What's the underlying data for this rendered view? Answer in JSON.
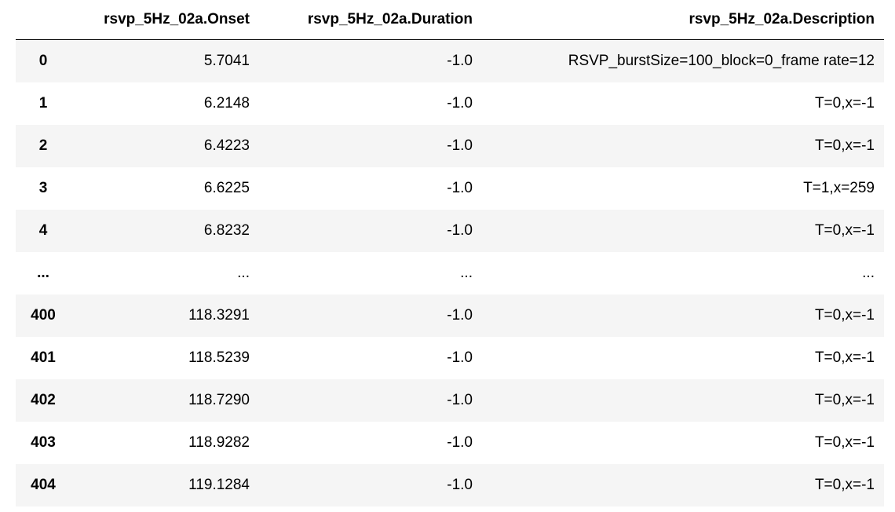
{
  "table": {
    "columns": [
      "rsvp_5Hz_02a.Onset",
      "rsvp_5Hz_02a.Duration",
      "rsvp_5Hz_02a.Description"
    ],
    "rows": [
      {
        "index": "0",
        "cells": [
          "5.7041",
          "-1.0",
          "RSVP_burstSize=100_block=0_frame rate=12"
        ]
      },
      {
        "index": "1",
        "cells": [
          "6.2148",
          "-1.0",
          "T=0,x=-1"
        ]
      },
      {
        "index": "2",
        "cells": [
          "6.4223",
          "-1.0",
          "T=0,x=-1"
        ]
      },
      {
        "index": "3",
        "cells": [
          "6.6225",
          "-1.0",
          "T=1,x=259"
        ]
      },
      {
        "index": "4",
        "cells": [
          "6.8232",
          "-1.0",
          "T=0,x=-1"
        ]
      },
      {
        "index": "...",
        "cells": [
          "...",
          "...",
          "..."
        ]
      },
      {
        "index": "400",
        "cells": [
          "118.3291",
          "-1.0",
          "T=0,x=-1"
        ]
      },
      {
        "index": "401",
        "cells": [
          "118.5239",
          "-1.0",
          "T=0,x=-1"
        ]
      },
      {
        "index": "402",
        "cells": [
          "118.7290",
          "-1.0",
          "T=0,x=-1"
        ]
      },
      {
        "index": "403",
        "cells": [
          "118.9282",
          "-1.0",
          "T=0,x=-1"
        ]
      },
      {
        "index": "404",
        "cells": [
          "119.1284",
          "-1.0",
          "T=0,x=-1"
        ]
      }
    ]
  }
}
